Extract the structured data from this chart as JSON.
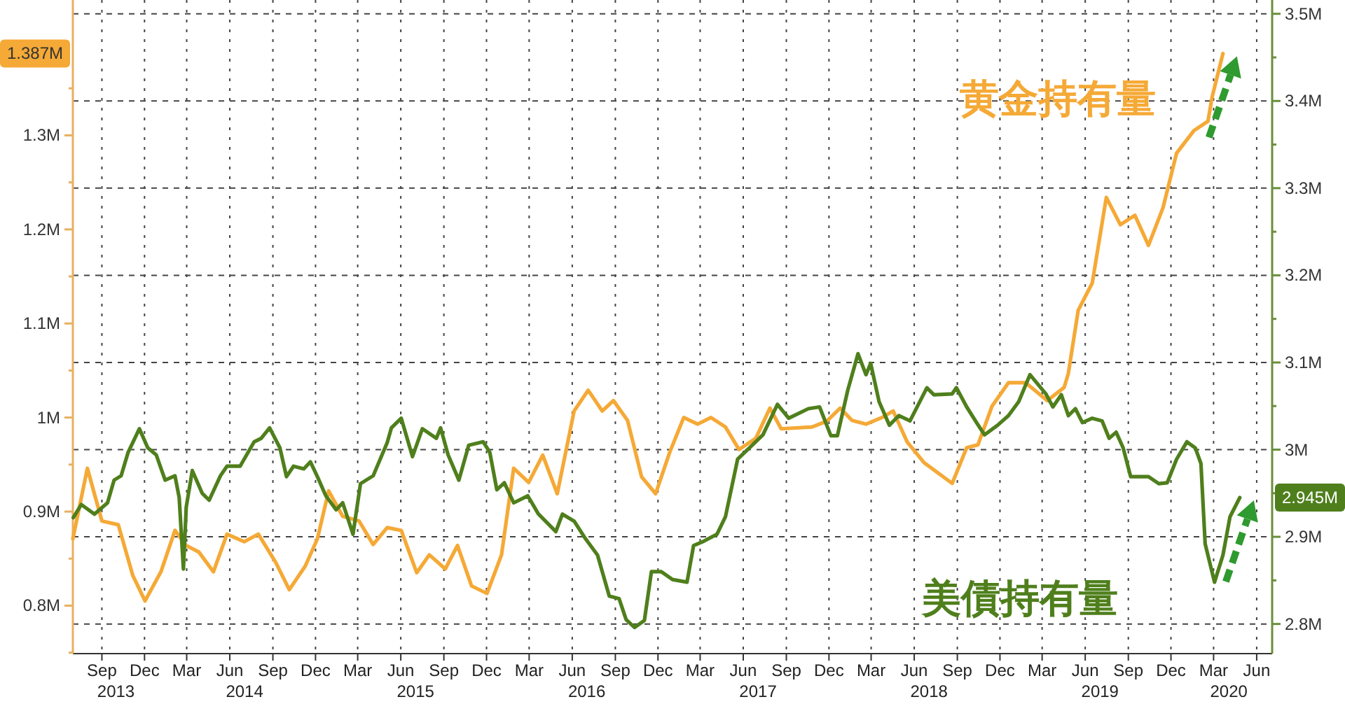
{
  "chart_data": {
    "type": "line",
    "xlim": [
      "2013-07-01",
      "2020-07-04"
    ],
    "xticks": [
      {
        "value": "2013-09-01",
        "label": "Sep"
      },
      {
        "value": "2013-12-01",
        "label": "Dec"
      },
      {
        "value": "2014-03-01",
        "label": "Mar"
      },
      {
        "value": "2014-06-01",
        "label": "Jun"
      },
      {
        "value": "2014-09-01",
        "label": "Sep"
      },
      {
        "value": "2014-12-01",
        "label": "Dec"
      },
      {
        "value": "2015-03-01",
        "label": "Mar"
      },
      {
        "value": "2015-06-01",
        "label": "Jun"
      },
      {
        "value": "2015-09-01",
        "label": "Sep"
      },
      {
        "value": "2015-12-01",
        "label": "Dec"
      },
      {
        "value": "2016-03-01",
        "label": "Mar"
      },
      {
        "value": "2016-06-01",
        "label": "Jun"
      },
      {
        "value": "2016-09-01",
        "label": "Sep"
      },
      {
        "value": "2016-12-01",
        "label": "Dec"
      },
      {
        "value": "2017-03-01",
        "label": "Mar"
      },
      {
        "value": "2017-06-01",
        "label": "Jun"
      },
      {
        "value": "2017-09-01",
        "label": "Sep"
      },
      {
        "value": "2017-12-01",
        "label": "Dec"
      },
      {
        "value": "2018-03-01",
        "label": "Mar"
      },
      {
        "value": "2018-06-01",
        "label": "Jun"
      },
      {
        "value": "2018-09-01",
        "label": "Sep"
      },
      {
        "value": "2018-12-01",
        "label": "Dec"
      },
      {
        "value": "2019-03-01",
        "label": "Mar"
      },
      {
        "value": "2019-06-01",
        "label": "Jun"
      },
      {
        "value": "2019-09-01",
        "label": "Sep"
      },
      {
        "value": "2019-12-01",
        "label": "Dec"
      },
      {
        "value": "2020-03-01",
        "label": "Mar"
      },
      {
        "value": "2020-06-01",
        "label": "Jun"
      }
    ],
    "ylim": [
      0.749,
      1.432
    ],
    "yticks": [
      {
        "value": 0.75,
        "label": null
      },
      {
        "value": 0.8,
        "label": "0.8M"
      },
      {
        "value": 0.85,
        "label": null
      },
      {
        "value": 0.9,
        "label": "0.9M"
      },
      {
        "value": 0.95,
        "label": null
      },
      {
        "value": 1,
        "label": "1M"
      },
      {
        "value": 1.05,
        "label": null
      },
      {
        "value": 1.1,
        "label": "1.1M"
      },
      {
        "value": 1.15,
        "label": null
      },
      {
        "value": 1.2,
        "label": "1.2M"
      },
      {
        "value": 1.25,
        "label": null
      },
      {
        "value": 1.3,
        "label": "1.3M"
      },
      {
        "value": 1.35,
        "label": null
      }
    ],
    "y2lim": [
      2.766,
      3.503
    ],
    "y2ticks": [
      {
        "value": 2.8,
        "label": "2.8M"
      },
      {
        "value": 2.85,
        "label": null
      },
      {
        "value": 2.9,
        "label": "2.9M"
      },
      {
        "value": 2.95,
        "label": null
      },
      {
        "value": 3,
        "label": "3M"
      },
      {
        "value": 3.05,
        "label": null
      },
      {
        "value": 3.1,
        "label": "3.1M"
      },
      {
        "value": 3.15,
        "label": null
      },
      {
        "value": 3.2,
        "label": "3.2M"
      },
      {
        "value": 3.25,
        "label": null
      },
      {
        "value": 3.3,
        "label": "3.3M"
      },
      {
        "value": 3.35,
        "label": null
      },
      {
        "value": 3.4,
        "label": "3.4M"
      },
      {
        "value": 3.45,
        "label": null
      },
      {
        "value": 3.5,
        "label": "3.5M"
      }
    ],
    "grid": true,
    "series": [
      {
        "name": "黄金持有量",
        "color": "#f5a936",
        "x": [
          "2013-07-01",
          "2013-08-01",
          "2013-09-01",
          "2013-10-06",
          "2013-11-06",
          "2013-12-02",
          "2014-01-05",
          "2014-02-04",
          "2014-02-28",
          "2014-03-27",
          "2014-04-27",
          "2014-05-26",
          "2014-07-02",
          "2014-08-01",
          "2014-09-07",
          "2014-10-06",
          "2014-11-09",
          "2014-12-05",
          "2014-12-29",
          "2015-01-28",
          "2015-03-04",
          "2015-04-03",
          "2015-05-03",
          "2015-06-02",
          "2015-07-05",
          "2015-08-01",
          "2015-09-04",
          "2015-09-30",
          "2015-10-30",
          "2015-12-02",
          "2016-01-02",
          "2016-01-28",
          "2016-02-29",
          "2016-03-30",
          "2016-04-30",
          "2016-06-05",
          "2016-07-05",
          "2016-08-04",
          "2016-08-28",
          "2016-09-27",
          "2016-10-27",
          "2016-11-26",
          "2016-12-26",
          "2017-01-25",
          "2017-02-24",
          "2017-03-24",
          "2017-04-24",
          "2017-05-23",
          "2017-06-28",
          "2017-07-28",
          "2017-08-21",
          "2017-10-26",
          "2017-11-26",
          "2017-12-25",
          "2018-01-19",
          "2018-02-18",
          "2018-03-24",
          "2018-04-17",
          "2018-05-17",
          "2018-06-22",
          "2018-08-21",
          "2018-09-21",
          "2018-10-15",
          "2018-11-14",
          "2018-12-19",
          "2019-01-25",
          "2019-03-12",
          "2019-04-17",
          "2019-04-26",
          "2019-05-17",
          "2019-06-16",
          "2019-07-16",
          "2019-08-15",
          "2019-09-15",
          "2019-10-14",
          "2019-11-14",
          "2019-12-13",
          "2020-01-19",
          "2020-02-18",
          "2020-02-27",
          "2020-03-21"
        ],
        "values": [
          0.871,
          0.946,
          0.89,
          0.886,
          0.832,
          0.805,
          0.836,
          0.88,
          0.864,
          0.857,
          0.836,
          0.876,
          0.868,
          0.876,
          0.846,
          0.817,
          0.842,
          0.871,
          0.922,
          0.895,
          0.89,
          0.865,
          0.883,
          0.88,
          0.835,
          0.854,
          0.839,
          0.864,
          0.821,
          0.813,
          0.854,
          0.946,
          0.931,
          0.96,
          0.919,
          1.007,
          1.029,
          1.007,
          1.018,
          0.997,
          0.937,
          0.919,
          0.963,
          1.0,
          0.993,
          1.0,
          0.99,
          0.966,
          0.978,
          1.01,
          0.988,
          0.99,
          0.996,
          1.01,
          0.997,
          0.993,
          1.0,
          1.007,
          0.974,
          0.952,
          0.93,
          0.968,
          0.971,
          1.012,
          1.037,
          1.037,
          1.018,
          1.032,
          1.047,
          1.114,
          1.143,
          1.234,
          1.205,
          1.215,
          1.183,
          1.223,
          1.281,
          1.305,
          1.315,
          1.341,
          1.387
        ]
      },
      {
        "name": "美債持有量",
        "color": "#4f7f1c",
        "axis": "y2",
        "x": [
          "2013-07-02",
          "2013-07-19",
          "2013-08-16",
          "2013-09-13",
          "2013-09-27",
          "2013-10-12",
          "2013-10-27",
          "2013-11-20",
          "2013-12-08",
          "2013-12-26",
          "2014-01-14",
          "2014-02-04",
          "2014-02-13",
          "2014-02-22",
          "2014-02-28",
          "2014-03-13",
          "2014-04-03",
          "2014-04-18",
          "2014-05-12",
          "2014-05-26",
          "2014-06-23",
          "2014-07-23",
          "2014-08-07",
          "2014-08-25",
          "2014-09-16",
          "2014-09-30",
          "2014-10-15",
          "2014-11-06",
          "2014-11-20",
          "2014-12-05",
          "2014-12-23",
          "2015-01-14",
          "2015-01-28",
          "2015-02-19",
          "2015-03-07",
          "2015-04-03",
          "2015-05-03",
          "2015-05-12",
          "2015-06-02",
          "2015-06-26",
          "2015-07-17",
          "2015-08-16",
          "2015-08-25",
          "2015-09-10",
          "2015-10-03",
          "2015-10-24",
          "2015-11-24",
          "2015-12-08",
          "2015-12-23",
          "2016-01-08",
          "2016-01-28",
          "2016-02-27",
          "2016-03-21",
          "2016-04-27",
          "2016-05-11",
          "2016-06-05",
          "2016-06-29",
          "2016-07-25",
          "2016-08-19",
          "2016-09-09",
          "2016-09-24",
          "2016-10-12",
          "2016-11-02",
          "2016-11-17",
          "2016-12-08",
          "2017-01-01",
          "2017-02-01",
          "2017-02-15",
          "2017-03-09",
          "2017-04-06",
          "2017-04-24",
          "2017-05-20",
          "2017-06-14",
          "2017-07-13",
          "2017-08-13",
          "2017-09-06",
          "2017-10-18",
          "2017-11-11",
          "2017-12-05",
          "2017-12-19",
          "2018-01-10",
          "2018-02-01",
          "2018-02-18",
          "2018-02-28",
          "2018-03-18",
          "2018-04-09",
          "2018-04-29",
          "2018-05-23",
          "2018-06-28",
          "2018-07-13",
          "2018-08-21",
          "2018-08-30",
          "2018-09-21",
          "2018-10-12",
          "2018-10-29",
          "2018-11-26",
          "2018-12-19",
          "2019-01-10",
          "2019-02-03",
          "2019-03-09",
          "2019-03-24",
          "2019-04-11",
          "2019-04-26",
          "2019-05-11",
          "2019-05-26",
          "2019-06-16",
          "2019-07-07",
          "2019-07-22",
          "2019-08-06",
          "2019-08-21",
          "2019-09-06",
          "2019-10-14",
          "2019-11-05",
          "2019-11-23",
          "2019-12-13",
          "2020-01-04",
          "2020-01-22",
          "2020-02-03",
          "2020-02-12",
          "2020-03-03",
          "2020-03-21",
          "2020-04-05",
          "2020-04-26"
        ],
        "values": [
          2.922,
          2.937,
          2.926,
          2.939,
          2.965,
          2.97,
          2.997,
          3.024,
          3.002,
          2.994,
          2.965,
          2.97,
          2.945,
          2.863,
          2.934,
          2.976,
          2.95,
          2.942,
          2.97,
          2.981,
          2.981,
          3.009,
          3.013,
          3.025,
          3.002,
          2.969,
          2.981,
          2.978,
          2.986,
          2.969,
          2.947,
          2.931,
          2.939,
          2.903,
          2.961,
          2.97,
          3.008,
          3.025,
          3.036,
          2.992,
          3.024,
          3.013,
          3.025,
          2.994,
          2.965,
          3.005,
          3.009,
          2.997,
          2.954,
          2.962,
          2.939,
          2.947,
          2.926,
          2.906,
          2.926,
          2.918,
          2.898,
          2.879,
          2.832,
          2.829,
          2.805,
          2.796,
          2.804,
          2.86,
          2.86,
          2.851,
          2.848,
          2.89,
          2.895,
          2.903,
          2.923,
          2.989,
          3.002,
          3.017,
          3.052,
          3.036,
          3.047,
          3.049,
          3.016,
          3.016,
          3.068,
          3.11,
          3.086,
          3.099,
          3.055,
          3.028,
          3.039,
          3.033,
          3.071,
          3.063,
          3.064,
          3.071,
          3.049,
          3.031,
          3.017,
          3.028,
          3.039,
          3.055,
          3.086,
          3.064,
          3.049,
          3.063,
          3.039,
          3.047,
          3.031,
          3.036,
          3.033,
          3.013,
          3.02,
          3.002,
          2.969,
          2.969,
          2.961,
          2.962,
          2.989,
          3.009,
          3.002,
          2.984,
          2.892,
          2.848,
          2.879,
          2.923,
          2.945
        ]
      }
    ],
    "annotations": [
      "1.387M",
      "2.945M",
      "2013",
      "2014",
      "2015",
      "2016",
      "2017",
      "2018",
      "2019",
      "2020"
    ]
  }
}
